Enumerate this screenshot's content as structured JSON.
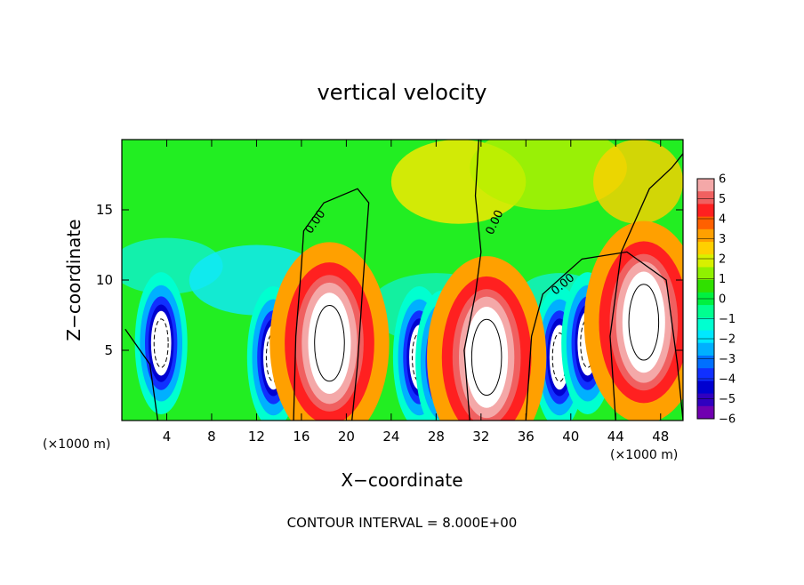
{
  "chart_data": {
    "type": "heatmap",
    "title": "vertical velocity",
    "xlabel": "X−coordinate",
    "ylabel": "Z−coordinate",
    "x_unit": "(×1000 m)",
    "y_unit": "(×1000 m)",
    "xlim": [
      0,
      50
    ],
    "ylim": [
      0,
      20
    ],
    "x_ticks": [
      "4",
      "8",
      "12",
      "16",
      "20",
      "24",
      "28",
      "32",
      "36",
      "40",
      "44",
      "48"
    ],
    "y_ticks": [
      "5",
      "10",
      "15"
    ],
    "colorbar": {
      "range": [
        -6,
        6
      ],
      "tick_labels": [
        "6",
        "5",
        "4",
        "3",
        "2",
        "1",
        "0",
        "−1",
        "−2",
        "−3",
        "−4",
        "−5",
        "−6"
      ],
      "colors": [
        "#f4a8a8",
        "#f06060",
        "#ff2020",
        "#ff6000",
        "#ffa000",
        "#ffd000",
        "#d8f000",
        "#90f000",
        "#30e000",
        "#00f040",
        "#00ff90",
        "#00ffd0",
        "#00e8ff",
        "#00b0ff",
        "#0070ff",
        "#1030ff",
        "#0000d0",
        "#3000c0",
        "#7000b0"
      ]
    },
    "contour_labels": [
      "0.00",
      "0.00",
      "0.00"
    ],
    "contour_interval": "CONTOUR INTERVAL = 8.000E+00",
    "updrafts": [
      {
        "x": 18.5,
        "z": 5.5,
        "peak": 6
      },
      {
        "x": 32.5,
        "z": 4.5,
        "peak": 6
      },
      {
        "x": 46.5,
        "z": 7.0,
        "peak": 6
      }
    ],
    "downdrafts": [
      {
        "x": 3.5,
        "z": 5.5,
        "peak": -6
      },
      {
        "x": 13.5,
        "z": 4.5,
        "peak": -6
      },
      {
        "x": 26.5,
        "z": 4.5,
        "peak": -6
      },
      {
        "x": 28.5,
        "z": 4.2,
        "peak": -6
      },
      {
        "x": 39.0,
        "z": 4.5,
        "peak": -6
      },
      {
        "x": 41.5,
        "z": 5.5,
        "peak": -6
      }
    ]
  }
}
